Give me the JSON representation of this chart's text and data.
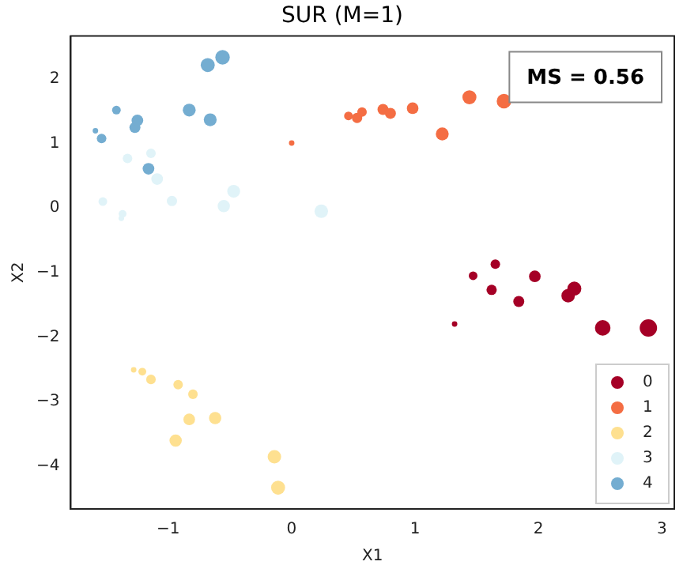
{
  "chart_data": {
    "type": "bubble",
    "title": "SUR (M=1)",
    "xlabel": "X1",
    "ylabel": "X2",
    "annotations": [
      "MS = 0.56"
    ],
    "xlim": [
      -1.79,
      3.1
    ],
    "ylim": [
      -4.67,
      2.67
    ],
    "xticks": [
      -1,
      0,
      1,
      2,
      3
    ],
    "yticks": [
      -4,
      -3,
      -2,
      -1,
      0,
      1,
      2
    ],
    "grid": false,
    "legend": "bottom right",
    "marker": "circle",
    "series": [
      {
        "name": "0",
        "color": "#a50026",
        "x": [
          1.47,
          1.65,
          1.62,
          1.84,
          1.97,
          2.24,
          2.29,
          1.32,
          2.52,
          2.89
        ],
        "values": [
          -1.05,
          -0.87,
          -1.27,
          -1.45,
          -1.06,
          -1.36,
          -1.25,
          -1.8,
          -1.86,
          -1.86
        ],
        "sizes": [
          0.25,
          0.3,
          0.35,
          0.4,
          0.45,
          0.6,
          0.65,
          0.1,
          0.8,
          1
        ]
      },
      {
        "name": "1",
        "color": "#f46d43",
        "x": [
          0.0,
          0.46,
          0.53,
          0.57,
          0.74,
          0.8,
          0.98,
          1.22,
          1.44,
          1.72
        ],
        "values": [
          1.01,
          1.43,
          1.4,
          1.49,
          1.53,
          1.47,
          1.55,
          1.15,
          1.72,
          1.66
        ],
        "sizes": [
          0.1,
          0.25,
          0.35,
          0.3,
          0.4,
          0.4,
          0.45,
          0.55,
          0.65,
          0.7
        ]
      },
      {
        "name": "2",
        "color": "#fee090",
        "x": [
          -1.28,
          -1.21,
          -1.14,
          -0.92,
          -0.8,
          -0.83,
          -0.62,
          -0.94,
          -0.14,
          -0.11
        ],
        "values": [
          -2.51,
          -2.54,
          -2.66,
          -2.74,
          -2.89,
          -3.28,
          -3.26,
          -3.61,
          -3.86,
          -4.34
        ],
        "sizes": [
          0.1,
          0.2,
          0.3,
          0.3,
          0.3,
          0.45,
          0.5,
          0.5,
          0.6,
          0.65
        ]
      },
      {
        "name": "3",
        "color": "#e0f3f8",
        "x": [
          -1.53,
          -1.38,
          -1.37,
          -1.33,
          -1.14,
          -1.09,
          -0.97,
          -0.55,
          -0.47,
          0.24
        ],
        "values": [
          0.1,
          -0.16,
          -0.09,
          0.77,
          0.85,
          0.45,
          0.11,
          0.03,
          0.26,
          -0.05
        ],
        "sizes": [
          0.25,
          0.1,
          0.2,
          0.3,
          0.3,
          0.45,
          0.35,
          0.5,
          0.55,
          0.6
        ]
      },
      {
        "name": "4",
        "color": "#74add1",
        "x": [
          -1.59,
          -1.54,
          -1.42,
          -1.27,
          -1.25,
          -1.16,
          -0.83,
          -0.66,
          -0.68,
          -0.56
        ],
        "values": [
          1.2,
          1.08,
          1.52,
          1.25,
          1.36,
          0.61,
          1.52,
          1.37,
          2.22,
          2.34
        ],
        "sizes": [
          0.1,
          0.3,
          0.25,
          0.4,
          0.45,
          0.45,
          0.55,
          0.55,
          0.65,
          0.7
        ]
      }
    ]
  }
}
